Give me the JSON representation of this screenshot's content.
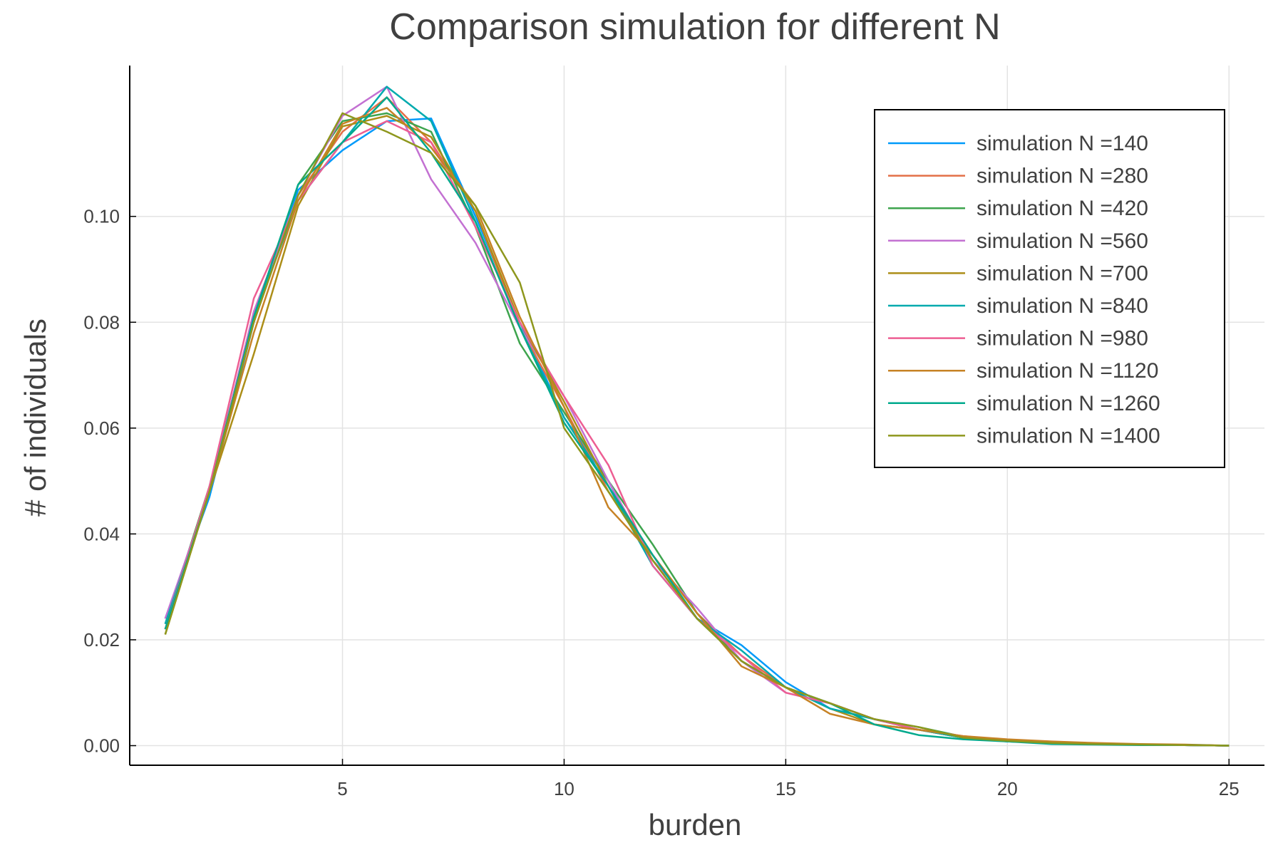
{
  "chart_data": {
    "type": "line",
    "title": "Comparison simulation for different N",
    "xlabel": "burden",
    "ylabel": "# of individuals",
    "xlim": [
      0.2,
      25.8
    ],
    "ylim": [
      -0.0037,
      0.1285
    ],
    "xticks": [
      5,
      10,
      15,
      20,
      25
    ],
    "xtick_labels": [
      "5",
      "10",
      "15",
      "20",
      "25"
    ],
    "yticks": [
      0.0,
      0.02,
      0.04,
      0.06,
      0.08,
      0.1
    ],
    "ytick_labels": [
      "0.00",
      "0.02",
      "0.04",
      "0.06",
      "0.08",
      "0.10"
    ],
    "grid": true,
    "legend_position": "top-right",
    "x": [
      1,
      2,
      3,
      4,
      5,
      6,
      7,
      8,
      9,
      10,
      11,
      12,
      13,
      14,
      15,
      16,
      17,
      18,
      19,
      20,
      21,
      22,
      23,
      24,
      25
    ],
    "series": [
      {
        "name": "simulation N =140",
        "color": "#009AFA",
        "values": [
          0.024,
          0.047,
          0.08,
          0.105,
          0.1125,
          0.118,
          0.1185,
          0.1,
          0.08,
          0.062,
          0.05,
          0.034,
          0.024,
          0.019,
          0.012,
          0.007,
          0.005,
          0.003,
          0.0015,
          0.0008,
          0.0005,
          0.0003,
          0.0002,
          0.0001,
          0.0
        ]
      },
      {
        "name": "simulation N =280",
        "color": "#E36F47",
        "values": [
          0.022,
          0.048,
          0.082,
          0.104,
          0.116,
          0.1225,
          0.114,
          0.101,
          0.079,
          0.064,
          0.048,
          0.036,
          0.025,
          0.017,
          0.011,
          0.008,
          0.005,
          0.003,
          0.0015,
          0.001,
          0.0006,
          0.0004,
          0.0002,
          0.0001,
          0.0
        ]
      },
      {
        "name": "simulation N =420",
        "color": "#3EA44E",
        "values": [
          0.023,
          0.049,
          0.081,
          0.106,
          0.118,
          0.1195,
          0.116,
          0.098,
          0.076,
          0.063,
          0.05,
          0.038,
          0.025,
          0.016,
          0.011,
          0.008,
          0.005,
          0.0035,
          0.0017,
          0.0009,
          0.0005,
          0.0003,
          0.0002,
          0.0001,
          0.0
        ]
      },
      {
        "name": "simulation N =560",
        "color": "#C371D2",
        "values": [
          0.024,
          0.048,
          0.082,
          0.104,
          0.119,
          0.1245,
          0.107,
          0.095,
          0.079,
          0.066,
          0.05,
          0.035,
          0.026,
          0.016,
          0.01,
          0.008,
          0.005,
          0.003,
          0.0017,
          0.001,
          0.0005,
          0.0003,
          0.0002,
          0.0001,
          0.0
        ]
      },
      {
        "name": "simulation N =700",
        "color": "#AC8E18",
        "values": [
          0.021,
          0.048,
          0.074,
          0.102,
          0.117,
          0.119,
          0.115,
          0.101,
          0.08,
          0.065,
          0.049,
          0.035,
          0.024,
          0.016,
          0.011,
          0.007,
          0.004,
          0.003,
          0.0015,
          0.001,
          0.0006,
          0.0004,
          0.0002,
          0.0001,
          0.0
        ]
      },
      {
        "name": "simulation N =840",
        "color": "#00AAAE",
        "values": [
          0.023,
          0.048,
          0.081,
          0.103,
          0.114,
          0.1245,
          0.118,
          0.099,
          0.079,
          0.062,
          0.049,
          0.034,
          0.024,
          0.018,
          0.011,
          0.007,
          0.005,
          0.003,
          0.0015,
          0.0008,
          0.0005,
          0.0003,
          0.0002,
          0.0001,
          0.0
        ]
      },
      {
        "name": "simulation N =980",
        "color": "#ED5E93",
        "values": [
          0.022,
          0.049,
          0.0845,
          0.103,
          0.114,
          0.118,
          0.114,
          0.098,
          0.08,
          0.066,
          0.053,
          0.034,
          0.024,
          0.017,
          0.01,
          0.008,
          0.005,
          0.003,
          0.0018,
          0.001,
          0.0006,
          0.0004,
          0.0002,
          0.0001,
          0.0
        ]
      },
      {
        "name": "simulation N =1120",
        "color": "#C68225",
        "values": [
          0.022,
          0.048,
          0.078,
          0.103,
          0.1175,
          0.1205,
          0.113,
          0.102,
          0.081,
          0.064,
          0.045,
          0.036,
          0.025,
          0.015,
          0.011,
          0.006,
          0.004,
          0.003,
          0.0018,
          0.0012,
          0.0008,
          0.0005,
          0.0003,
          0.0002,
          0.0
        ]
      },
      {
        "name": "simulation N =1260",
        "color": "#00A98D",
        "values": [
          0.022,
          0.048,
          0.081,
          0.106,
          0.114,
          0.1225,
          0.112,
          0.099,
          0.079,
          0.061,
          0.049,
          0.036,
          0.024,
          0.016,
          0.011,
          0.008,
          0.004,
          0.002,
          0.0012,
          0.0008,
          0.0003,
          0.0002,
          0.0001,
          0.0001,
          0.0
        ]
      },
      {
        "name": "simulation N =1400",
        "color": "#8E971D",
        "values": [
          0.021,
          0.048,
          0.08,
          0.104,
          0.1195,
          0.116,
          0.112,
          0.102,
          0.0875,
          0.06,
          0.048,
          0.035,
          0.024,
          0.016,
          0.011,
          0.008,
          0.005,
          0.0035,
          0.0015,
          0.0009,
          0.0005,
          0.0003,
          0.0002,
          0.0001,
          0.0
        ]
      }
    ]
  }
}
